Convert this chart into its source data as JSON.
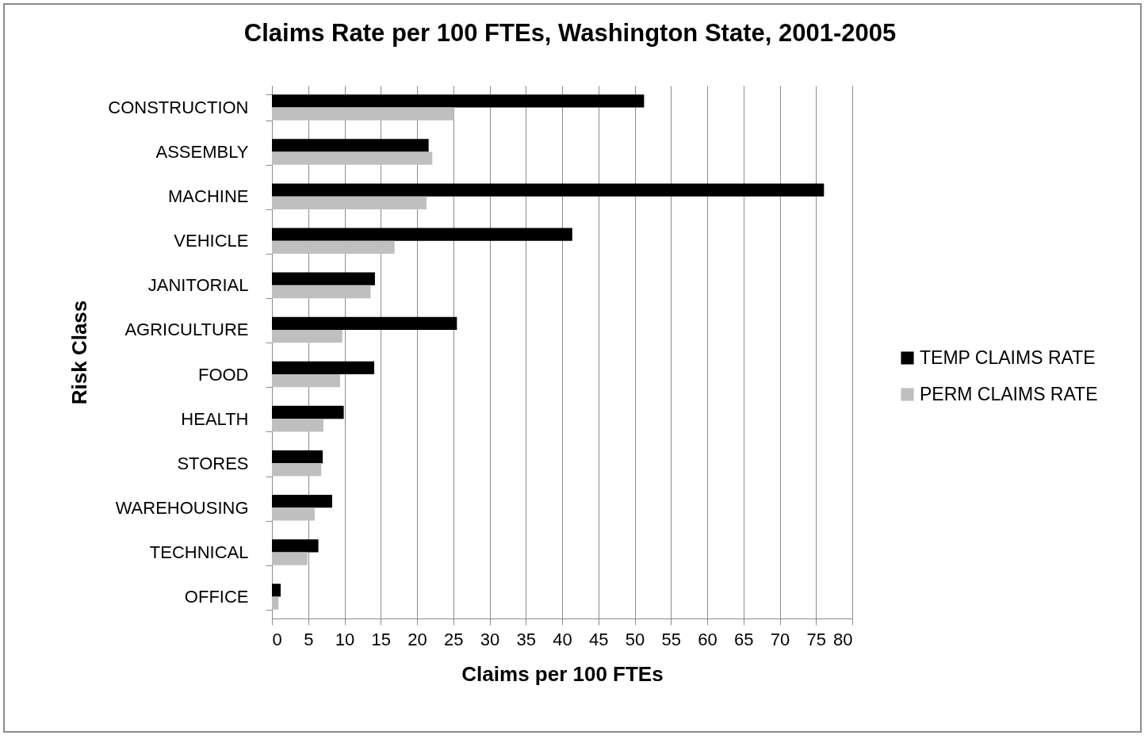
{
  "chart_data": {
    "type": "bar",
    "orientation": "horizontal",
    "title": "Claims Rate per 100 FTEs, Washington State, 2001-2005",
    "xlabel": "Claims per 100 FTEs",
    "ylabel": "Risk Class",
    "categories": [
      "CONSTRUCTION",
      "ASSEMBLY",
      "MACHINE",
      "VEHICLE",
      "JANITORIAL",
      "AGRICULTURE",
      "FOOD",
      "HEALTH",
      "STORES",
      "WAREHOUSING",
      "TECHNICAL",
      "OFFICE"
    ],
    "series": [
      {
        "name": "TEMP CLAIMS RATE",
        "color": "#000000",
        "values": [
          51.3,
          21.6,
          76.1,
          41.4,
          14.2,
          25.5,
          14.1,
          9.9,
          7.0,
          8.3,
          6.4,
          1.2
        ]
      },
      {
        "name": "PERM CLAIMS RATE",
        "color": "#bfbfbf",
        "values": [
          25.1,
          22.1,
          21.3,
          16.9,
          13.6,
          9.7,
          9.4,
          7.1,
          6.8,
          5.9,
          4.9,
          0.9
        ]
      }
    ],
    "xlim": [
      0,
      80
    ],
    "xticks": [
      0,
      5,
      10,
      15,
      20,
      25,
      30,
      35,
      40,
      45,
      50,
      55,
      60,
      65,
      70,
      75,
      80
    ],
    "grid": "x",
    "legend": "right"
  }
}
